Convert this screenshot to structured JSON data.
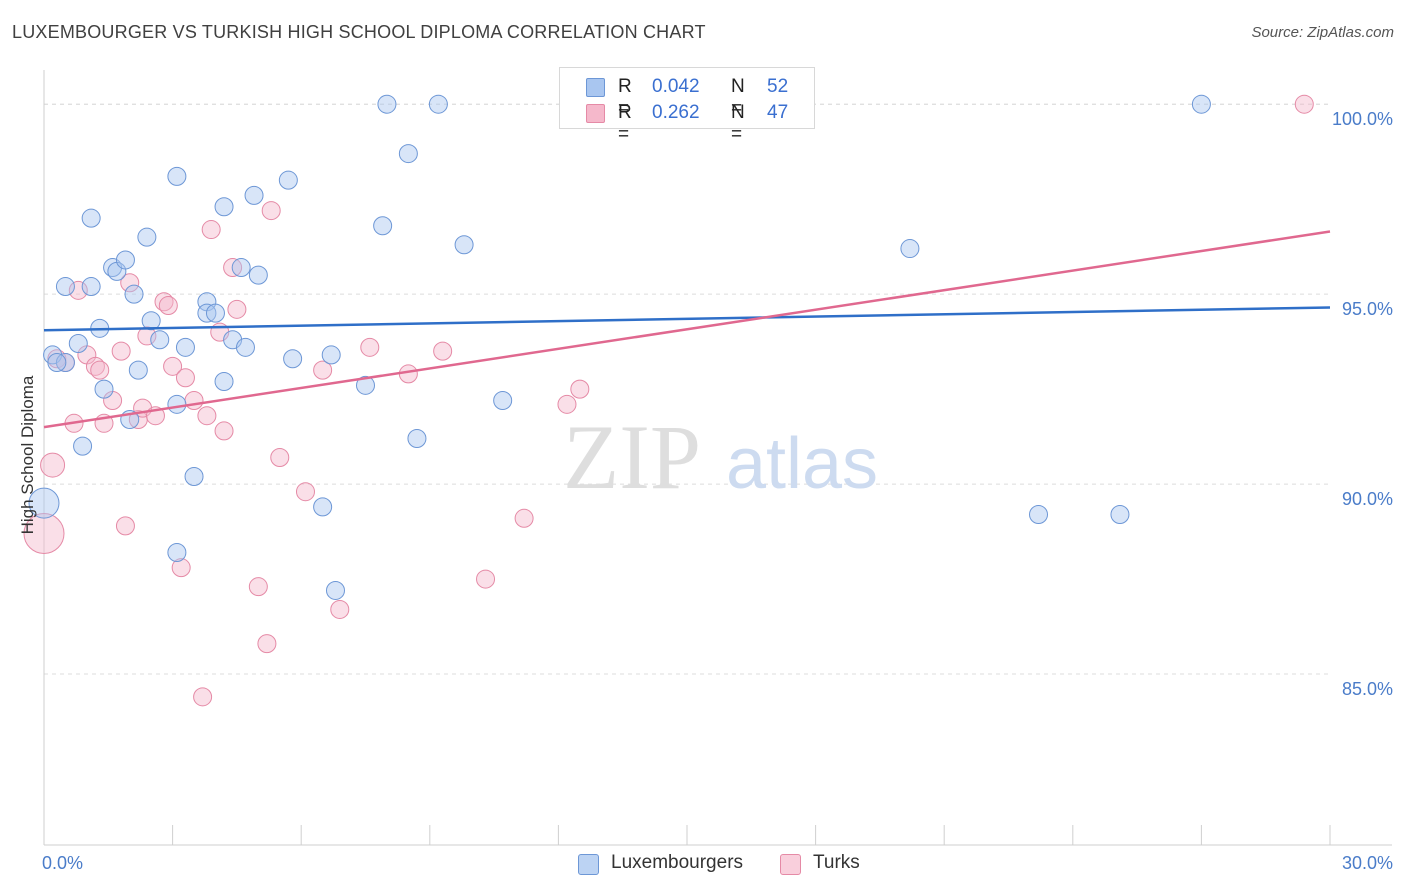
{
  "header": {
    "title": "LUXEMBOURGER VS TURKISH HIGH SCHOOL DIPLOMA CORRELATION CHART",
    "source": "Source: ZipAtlas.com"
  },
  "watermark": {
    "zip": "ZIP",
    "atlas": "atlas"
  },
  "legend": {
    "rows": [
      {
        "r_label": "R =",
        "r_value": "0.042",
        "n_label": "N =",
        "n_value": "52"
      },
      {
        "r_label": "R =",
        "r_value": "0.262",
        "n_label": "N =",
        "n_value": "47"
      }
    ],
    "bottom": [
      "Luxembourgers",
      "Turks"
    ]
  },
  "colors": {
    "lux_fill": "#a9c6f0",
    "lux_stroke": "#6d97d6",
    "lux_line": "#2f6fc8",
    "turk_fill": "#f5b8cb",
    "turk_stroke": "#e58aa6",
    "turk_line": "#e0688f",
    "tick_text": "#4a7cc9",
    "grid": "#dcdcdc"
  },
  "chart_data": {
    "type": "scatter",
    "title": "LUXEMBOURGER VS TURKISH HIGH SCHOOL DIPLOMA CORRELATION CHART",
    "xlabel": "",
    "ylabel": "High School Diploma",
    "xlim": [
      0,
      30
    ],
    "ylim": [
      80.5,
      100.9
    ],
    "x_tick_labels": [
      "0.0%",
      "30.0%"
    ],
    "y_ticks": [
      85,
      90,
      95,
      100
    ],
    "y_tick_labels": [
      "85.0%",
      "90.0%",
      "95.0%",
      "100.0%"
    ],
    "grid": true,
    "legend_position": "top-center",
    "series": [
      {
        "name": "Luxembourgers",
        "r": 0.042,
        "n": 52,
        "trend": {
          "x": [
            0,
            30
          ],
          "y": [
            94.05,
            94.65
          ]
        },
        "points": [
          [
            0.2,
            93.4
          ],
          [
            0.5,
            93.2
          ],
          [
            0.3,
            93.2
          ],
          [
            0.5,
            95.2
          ],
          [
            1.1,
            95.2
          ],
          [
            1.1,
            97.0
          ],
          [
            0.8,
            93.7
          ],
          [
            1.3,
            94.1
          ],
          [
            1.4,
            92.5
          ],
          [
            0.9,
            91.0
          ],
          [
            1.6,
            95.7
          ],
          [
            1.7,
            95.6
          ],
          [
            1.9,
            95.9
          ],
          [
            2.1,
            95.0
          ],
          [
            2.4,
            96.5
          ],
          [
            2.2,
            93.0
          ],
          [
            2.0,
            91.7
          ],
          [
            2.5,
            94.3
          ],
          [
            2.7,
            93.8
          ],
          [
            3.1,
            98.1
          ],
          [
            3.1,
            92.1
          ],
          [
            3.3,
            93.6
          ],
          [
            3.5,
            90.2
          ],
          [
            3.8,
            94.8
          ],
          [
            3.8,
            94.5
          ],
          [
            4.0,
            94.5
          ],
          [
            4.2,
            97.3
          ],
          [
            4.2,
            92.7
          ],
          [
            4.4,
            93.8
          ],
          [
            4.6,
            95.7
          ],
          [
            4.7,
            93.6
          ],
          [
            4.9,
            97.6
          ],
          [
            5.0,
            95.5
          ],
          [
            5.7,
            98.0
          ],
          [
            5.8,
            93.3
          ],
          [
            6.5,
            89.4
          ],
          [
            6.7,
            93.4
          ],
          [
            6.8,
            87.2
          ],
          [
            7.5,
            92.6
          ],
          [
            7.9,
            96.8
          ],
          [
            8.0,
            100.0
          ],
          [
            8.5,
            98.7
          ],
          [
            8.7,
            91.2
          ],
          [
            9.2,
            100.0
          ],
          [
            9.8,
            96.3
          ],
          [
            10.7,
            92.2
          ],
          [
            3.1,
            88.2
          ],
          [
            20.2,
            96.2
          ],
          [
            23.2,
            89.2
          ],
          [
            25.1,
            89.2
          ],
          [
            27.0,
            100.0
          ],
          [
            0.0,
            89.5
          ]
        ]
      },
      {
        "name": "Turks",
        "r": 0.262,
        "n": 47,
        "trend": {
          "x": [
            0,
            30
          ],
          "y": [
            91.5,
            96.65
          ]
        },
        "points": [
          [
            0.3,
            93.3
          ],
          [
            0.5,
            93.2
          ],
          [
            0.7,
            91.6
          ],
          [
            0.8,
            95.1
          ],
          [
            1.0,
            93.4
          ],
          [
            1.2,
            93.1
          ],
          [
            1.3,
            93.0
          ],
          [
            1.4,
            91.6
          ],
          [
            1.6,
            92.2
          ],
          [
            1.8,
            93.5
          ],
          [
            1.9,
            88.9
          ],
          [
            2.0,
            95.3
          ],
          [
            2.2,
            91.7
          ],
          [
            2.3,
            92.0
          ],
          [
            2.4,
            93.9
          ],
          [
            2.6,
            91.8
          ],
          [
            2.8,
            94.8
          ],
          [
            2.9,
            94.7
          ],
          [
            3.0,
            93.1
          ],
          [
            3.2,
            87.8
          ],
          [
            3.3,
            92.8
          ],
          [
            3.5,
            92.2
          ],
          [
            3.7,
            84.4
          ],
          [
            3.8,
            91.8
          ],
          [
            3.9,
            96.7
          ],
          [
            4.1,
            94.0
          ],
          [
            4.2,
            91.4
          ],
          [
            4.4,
            95.7
          ],
          [
            4.5,
            94.6
          ],
          [
            5.0,
            87.3
          ],
          [
            5.2,
            85.8
          ],
          [
            5.3,
            97.2
          ],
          [
            5.5,
            90.7
          ],
          [
            6.1,
            89.8
          ],
          [
            6.5,
            93.0
          ],
          [
            6.9,
            86.7
          ],
          [
            7.6,
            93.6
          ],
          [
            8.5,
            92.9
          ],
          [
            9.3,
            93.5
          ],
          [
            10.3,
            87.5
          ],
          [
            11.2,
            89.1
          ],
          [
            12.2,
            92.1
          ],
          [
            12.5,
            92.5
          ],
          [
            12.6,
            100.0
          ],
          [
            29.4,
            100.0
          ],
          [
            0.2,
            90.5
          ],
          [
            0.0,
            88.7
          ]
        ]
      }
    ]
  }
}
